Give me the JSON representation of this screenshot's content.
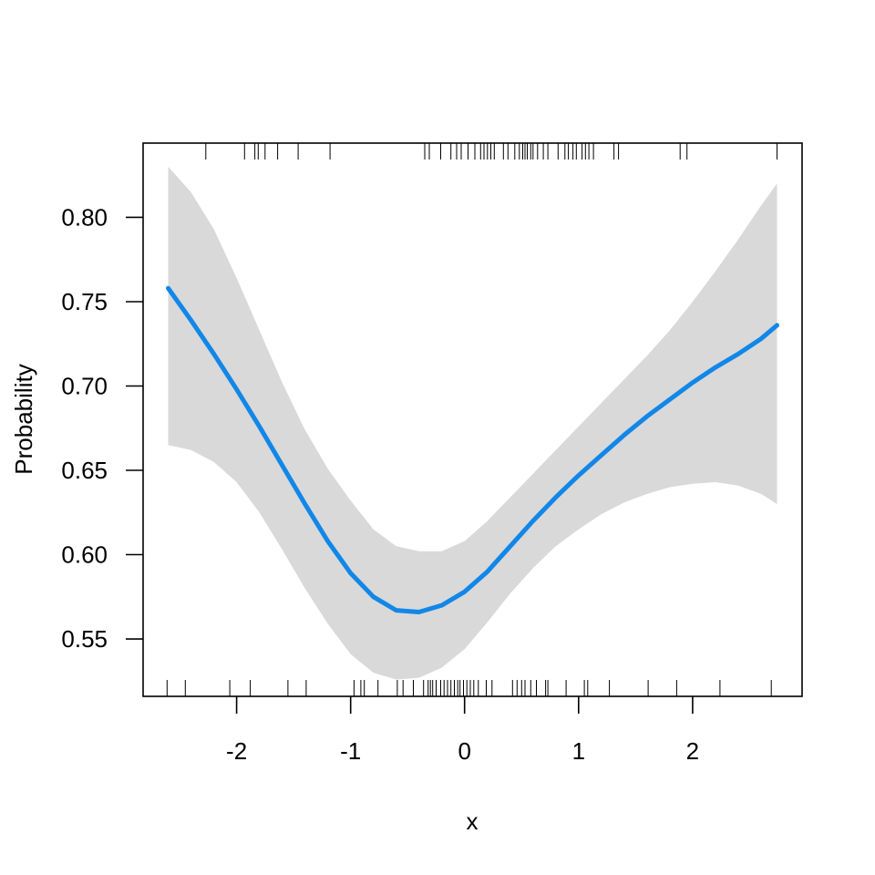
{
  "chart_data": {
    "type": "line",
    "title": "",
    "xlabel": "x",
    "ylabel": "Probability",
    "xlim": [
      -2.82,
      2.96
    ],
    "ylim": [
      0.516,
      0.844
    ],
    "x_ticks": [
      -2,
      -1,
      0,
      1,
      2
    ],
    "x_tick_labels": [
      "-2",
      "-1",
      "0",
      "1",
      "2"
    ],
    "y_ticks": [
      0.55,
      0.6,
      0.65,
      0.7,
      0.75,
      0.8
    ],
    "y_tick_labels": [
      "0.55",
      "0.60",
      "0.65",
      "0.70",
      "0.75",
      "0.80"
    ],
    "grid": false,
    "legend": "none",
    "line_color": "#1187e8",
    "band_color": "#d9d9d9",
    "series": [
      {
        "x": [
          -2.6,
          -2.4,
          -2.2,
          -2.0,
          -1.8,
          -1.6,
          -1.4,
          -1.2,
          -1.0,
          -0.8,
          -0.6,
          -0.4,
          -0.2,
          0.0,
          0.2,
          0.4,
          0.6,
          0.8,
          1.0,
          1.2,
          1.4,
          1.6,
          1.8,
          2.0,
          2.2,
          2.4,
          2.6,
          2.74
        ],
        "fit": [
          0.758,
          0.739,
          0.719,
          0.698,
          0.676,
          0.653,
          0.63,
          0.608,
          0.589,
          0.575,
          0.567,
          0.566,
          0.57,
          0.578,
          0.59,
          0.605,
          0.62,
          0.634,
          0.647,
          0.659,
          0.671,
          0.682,
          0.692,
          0.702,
          0.711,
          0.719,
          0.728,
          0.736
        ],
        "lower": [
          0.665,
          0.662,
          0.655,
          0.643,
          0.625,
          0.603,
          0.58,
          0.559,
          0.541,
          0.53,
          0.526,
          0.527,
          0.533,
          0.544,
          0.56,
          0.577,
          0.592,
          0.605,
          0.615,
          0.624,
          0.631,
          0.636,
          0.64,
          0.642,
          0.643,
          0.641,
          0.636,
          0.63
        ],
        "upper": [
          0.83,
          0.815,
          0.793,
          0.764,
          0.733,
          0.702,
          0.674,
          0.651,
          0.632,
          0.615,
          0.605,
          0.602,
          0.602,
          0.608,
          0.62,
          0.634,
          0.648,
          0.662,
          0.676,
          0.69,
          0.704,
          0.718,
          0.733,
          0.75,
          0.768,
          0.787,
          0.807,
          0.82
        ]
      }
    ],
    "rug_top": [
      -2.27,
      -1.93,
      -1.84,
      -1.81,
      -1.75,
      -1.64,
      -1.46,
      -1.18,
      -0.35,
      -0.31,
      -0.21,
      -0.12,
      -0.07,
      -0.03,
      0.03,
      0.09,
      0.14,
      0.17,
      0.2,
      0.23,
      0.26,
      0.34,
      0.38,
      0.44,
      0.48,
      0.51,
      0.53,
      0.55,
      0.58,
      0.6,
      0.64,
      0.69,
      0.73,
      0.82,
      0.88,
      0.91,
      0.95,
      0.98,
      1.03,
      1.06,
      1.09,
      1.13,
      1.31,
      1.35,
      1.89,
      1.95,
      2.74
    ],
    "rug_bottom": [
      -2.61,
      -2.45,
      -2.06,
      -1.88,
      -1.55,
      -1.39,
      -0.97,
      -0.91,
      -0.88,
      -0.76,
      -0.59,
      -0.54,
      -0.45,
      -0.36,
      -0.32,
      -0.3,
      -0.28,
      -0.25,
      -0.21,
      -0.18,
      -0.15,
      -0.12,
      -0.09,
      -0.06,
      -0.04,
      -0.01,
      0.02,
      0.05,
      0.08,
      0.12,
      0.19,
      0.24,
      0.42,
      0.46,
      0.5,
      0.53,
      0.58,
      0.63,
      0.71,
      0.73,
      0.89,
      1.05,
      1.08,
      1.27,
      1.61,
      1.86,
      2.24,
      2.69
    ]
  }
}
